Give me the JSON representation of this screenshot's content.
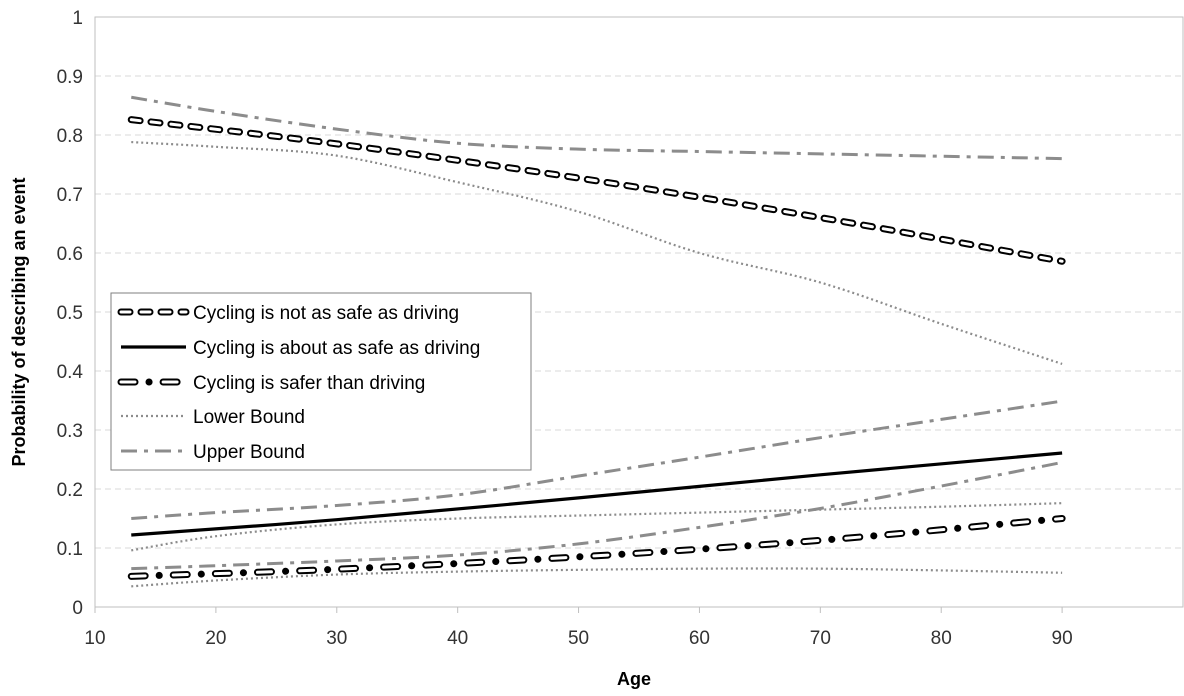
{
  "chart_data": {
    "type": "line",
    "xlabel": "Age",
    "ylabel": "Probability of describing  an event",
    "xlim": [
      10,
      100
    ],
    "ylim": [
      0,
      1
    ],
    "xticks": [
      "10",
      "20",
      "30",
      "40",
      "50",
      "60",
      "70",
      "80",
      "90"
    ],
    "yticks": [
      "0",
      "0.1",
      "0.2",
      "0.3",
      "0.4",
      "0.5",
      "0.6",
      "0.7",
      "0.8",
      "0.9",
      "1"
    ],
    "grid": "horizontal dashed",
    "legend_position": "middle-left",
    "series": [
      {
        "name": "Cycling is not as safe as driving",
        "style": "hollow-dash",
        "color": "#000000",
        "points": [
          [
            13,
            0.826
          ],
          [
            30,
            0.785
          ],
          [
            50,
            0.727
          ],
          [
            70,
            0.66
          ],
          [
            90,
            0.586
          ]
        ]
      },
      {
        "name": "Cycling is about as safe as driving",
        "style": "solid",
        "color": "#000000",
        "points": [
          [
            13,
            0.122
          ],
          [
            30,
            0.148
          ],
          [
            50,
            0.185
          ],
          [
            70,
            0.224
          ],
          [
            90,
            0.261
          ]
        ]
      },
      {
        "name": "Cycling is safer than driving",
        "style": "hollow-dash-dot",
        "color": "#000000",
        "points": [
          [
            13,
            0.052
          ],
          [
            30,
            0.064
          ],
          [
            50,
            0.085
          ],
          [
            70,
            0.113
          ],
          [
            90,
            0.15
          ]
        ]
      },
      {
        "name": "Lower Bound",
        "style": "dotted",
        "color": "#8c8c8c",
        "points": [
          [
            13,
            0.788
          ],
          [
            20,
            0.78
          ],
          [
            30,
            0.765
          ],
          [
            40,
            0.72
          ],
          [
            50,
            0.67
          ],
          [
            60,
            0.6
          ],
          [
            70,
            0.55
          ],
          [
            80,
            0.48
          ],
          [
            90,
            0.412
          ]
        ]
      },
      {
        "name": "Lower Bound",
        "style": "dotted",
        "color": "#8c8c8c",
        "legend": false,
        "points": [
          [
            13,
            0.096
          ],
          [
            20,
            0.12
          ],
          [
            30,
            0.14
          ],
          [
            40,
            0.15
          ],
          [
            50,
            0.155
          ],
          [
            60,
            0.16
          ],
          [
            70,
            0.165
          ],
          [
            80,
            0.17
          ],
          [
            90,
            0.176
          ]
        ]
      },
      {
        "name": "Lower Bound",
        "style": "dotted",
        "color": "#8c8c8c",
        "legend": false,
        "points": [
          [
            13,
            0.035
          ],
          [
            20,
            0.045
          ],
          [
            30,
            0.055
          ],
          [
            40,
            0.06
          ],
          [
            50,
            0.063
          ],
          [
            60,
            0.065
          ],
          [
            70,
            0.065
          ],
          [
            80,
            0.062
          ],
          [
            90,
            0.058
          ]
        ]
      },
      {
        "name": "Upper Bound",
        "style": "dash-dot",
        "color": "#8c8c8c",
        "points": [
          [
            13,
            0.864
          ],
          [
            20,
            0.84
          ],
          [
            30,
            0.81
          ],
          [
            40,
            0.786
          ],
          [
            50,
            0.776
          ],
          [
            60,
            0.772
          ],
          [
            70,
            0.768
          ],
          [
            80,
            0.764
          ],
          [
            90,
            0.76
          ]
        ]
      },
      {
        "name": "Upper Bound",
        "style": "dash-dot",
        "color": "#8c8c8c",
        "legend": false,
        "points": [
          [
            13,
            0.15
          ],
          [
            20,
            0.16
          ],
          [
            30,
            0.172
          ],
          [
            40,
            0.19
          ],
          [
            50,
            0.222
          ],
          [
            60,
            0.254
          ],
          [
            70,
            0.287
          ],
          [
            80,
            0.318
          ],
          [
            90,
            0.349
          ]
        ]
      },
      {
        "name": "Upper Bound",
        "style": "dash-dot",
        "color": "#8c8c8c",
        "legend": false,
        "points": [
          [
            13,
            0.065
          ],
          [
            20,
            0.07
          ],
          [
            30,
            0.078
          ],
          [
            40,
            0.088
          ],
          [
            50,
            0.107
          ],
          [
            60,
            0.135
          ],
          [
            70,
            0.167
          ],
          [
            80,
            0.205
          ],
          [
            90,
            0.245
          ]
        ]
      }
    ],
    "legend": [
      {
        "label": "Cycling is not as safe as driving",
        "style": "hollow-dash"
      },
      {
        "label": "Cycling is about as safe as driving",
        "style": "solid"
      },
      {
        "label": "Cycling is safer than driving",
        "style": "hollow-dash-dot"
      },
      {
        "label": "Lower Bound",
        "style": "dotted"
      },
      {
        "label": "Upper Bound",
        "style": "dash-dot"
      }
    ]
  }
}
